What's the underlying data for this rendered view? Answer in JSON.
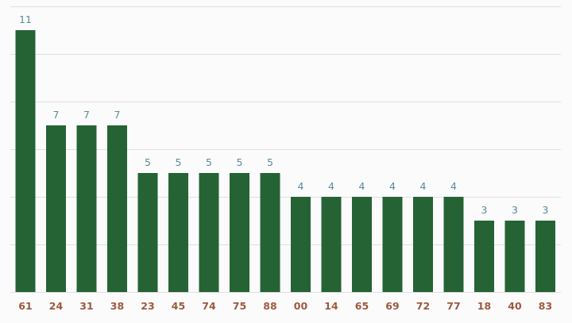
{
  "chart_data": {
    "type": "bar",
    "categories": [
      "61",
      "24",
      "31",
      "38",
      "23",
      "45",
      "74",
      "75",
      "88",
      "00",
      "14",
      "65",
      "69",
      "72",
      "77",
      "18",
      "40",
      "83"
    ],
    "values": [
      11,
      7,
      7,
      7,
      5,
      5,
      5,
      5,
      5,
      4,
      4,
      4,
      4,
      4,
      4,
      3,
      3,
      3
    ],
    "title": "",
    "xlabel": "",
    "ylabel": "",
    "ylim": [
      0,
      12
    ],
    "grid": true,
    "legend": "none",
    "colors": {
      "bar": "#256335",
      "value_label": "#5a8a9c",
      "category_label": "#9c5a40",
      "grid": "#e0e0e0",
      "background": "#fbfbfb"
    }
  }
}
